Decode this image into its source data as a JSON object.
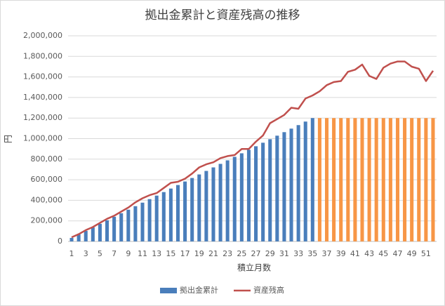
{
  "chart_data": {
    "type": "bar",
    "title": "拠出金累計と資産残高の推移",
    "x_label": "積立月数",
    "y_label": "円",
    "categories": [
      1,
      null,
      3,
      null,
      5,
      null,
      7,
      null,
      9,
      null,
      11,
      null,
      13,
      null,
      15,
      null,
      17,
      null,
      19,
      null,
      21,
      null,
      23,
      null,
      25,
      null,
      27,
      null,
      29,
      null,
      31,
      null,
      33,
      null,
      35,
      null,
      37,
      null,
      39,
      null,
      41,
      null,
      43,
      null,
      45,
      null,
      47,
      null,
      49,
      null,
      51,
      null
    ],
    "series": [
      {
        "name": "拠出金累計",
        "type": "bar",
        "color": "#4a7ebb",
        "colors": [
          "#4a7ebb",
          "#4a7ebb",
          "#4a7ebb",
          "#4a7ebb",
          "#4a7ebb",
          "#4a7ebb",
          "#4a7ebb",
          "#4a7ebb",
          "#4a7ebb",
          "#4a7ebb",
          "#4a7ebb",
          "#4a7ebb",
          "#4a7ebb",
          "#4a7ebb",
          "#4a7ebb",
          "#4a7ebb",
          "#4a7ebb",
          "#4a7ebb",
          "#4a7ebb",
          "#4a7ebb",
          "#4a7ebb",
          "#4a7ebb",
          "#4a7ebb",
          "#4a7ebb",
          "#4a7ebb",
          "#4a7ebb",
          "#4a7ebb",
          "#4a7ebb",
          "#4a7ebb",
          "#4a7ebb",
          "#4a7ebb",
          "#4a7ebb",
          "#4a7ebb",
          "#4a7ebb",
          "#4a7ebb",
          "#f79646",
          "#f79646",
          "#f79646",
          "#f79646",
          "#f79646",
          "#f79646",
          "#f79646",
          "#f79646",
          "#f79646",
          "#f79646",
          "#f79646",
          "#f79646",
          "#f79646",
          "#f79646",
          "#f79646",
          "#f79646",
          "#f79646"
        ],
        "values": [
          34286,
          68571,
          102857,
          137143,
          171429,
          205714,
          240000,
          274286,
          308571,
          342857,
          377143,
          411429,
          445714,
          480000,
          514286,
          548571,
          582857,
          617143,
          651429,
          685714,
          720000,
          754286,
          788571,
          822857,
          857143,
          891429,
          925714,
          960000,
          994286,
          1028571,
          1062857,
          1097143,
          1131429,
          1165714,
          1200000,
          1200000,
          1200000,
          1200000,
          1200000,
          1200000,
          1200000,
          1200000,
          1200000,
          1200000,
          1200000,
          1200000,
          1200000,
          1200000,
          1200000,
          1200000,
          1200000,
          1200000
        ]
      },
      {
        "name": "資産残高",
        "type": "line",
        "color": "#c0504d",
        "values": [
          40000,
          70000,
          110000,
          140000,
          180000,
          220000,
          250000,
          290000,
          330000,
          380000,
          420000,
          450000,
          470000,
          520000,
          570000,
          580000,
          610000,
          660000,
          720000,
          750000,
          770000,
          810000,
          830000,
          840000,
          900000,
          900000,
          970000,
          1030000,
          1150000,
          1190000,
          1230000,
          1300000,
          1290000,
          1390000,
          1420000,
          1460000,
          1520000,
          1550000,
          1560000,
          1650000,
          1670000,
          1720000,
          1610000,
          1580000,
          1690000,
          1730000,
          1750000,
          1750000,
          1700000,
          1680000,
          1560000,
          1660000
        ]
      }
    ],
    "ylim": [
      0,
      2000000
    ],
    "yticks": [
      0,
      {
        "value": 200000,
        "label": "200,000"
      },
      {
        "value": 400000,
        "label": "400,000"
      },
      {
        "value": 600000,
        "label": "600,000"
      },
      {
        "value": 800000,
        "label": "800,000"
      },
      {
        "value": 1000000,
        "label": "1,000,000"
      },
      {
        "value": 1200000,
        "label": "1,200,000"
      },
      {
        "value": 1400000,
        "label": "1,400,000"
      },
      {
        "value": 1600000,
        "label": "1,600,000"
      },
      {
        "value": 1800000,
        "label": "1,800,000"
      },
      {
        "value": 2000000,
        "label": "2,000,000"
      }
    ],
    "grid": true,
    "legend": "bottom"
  }
}
